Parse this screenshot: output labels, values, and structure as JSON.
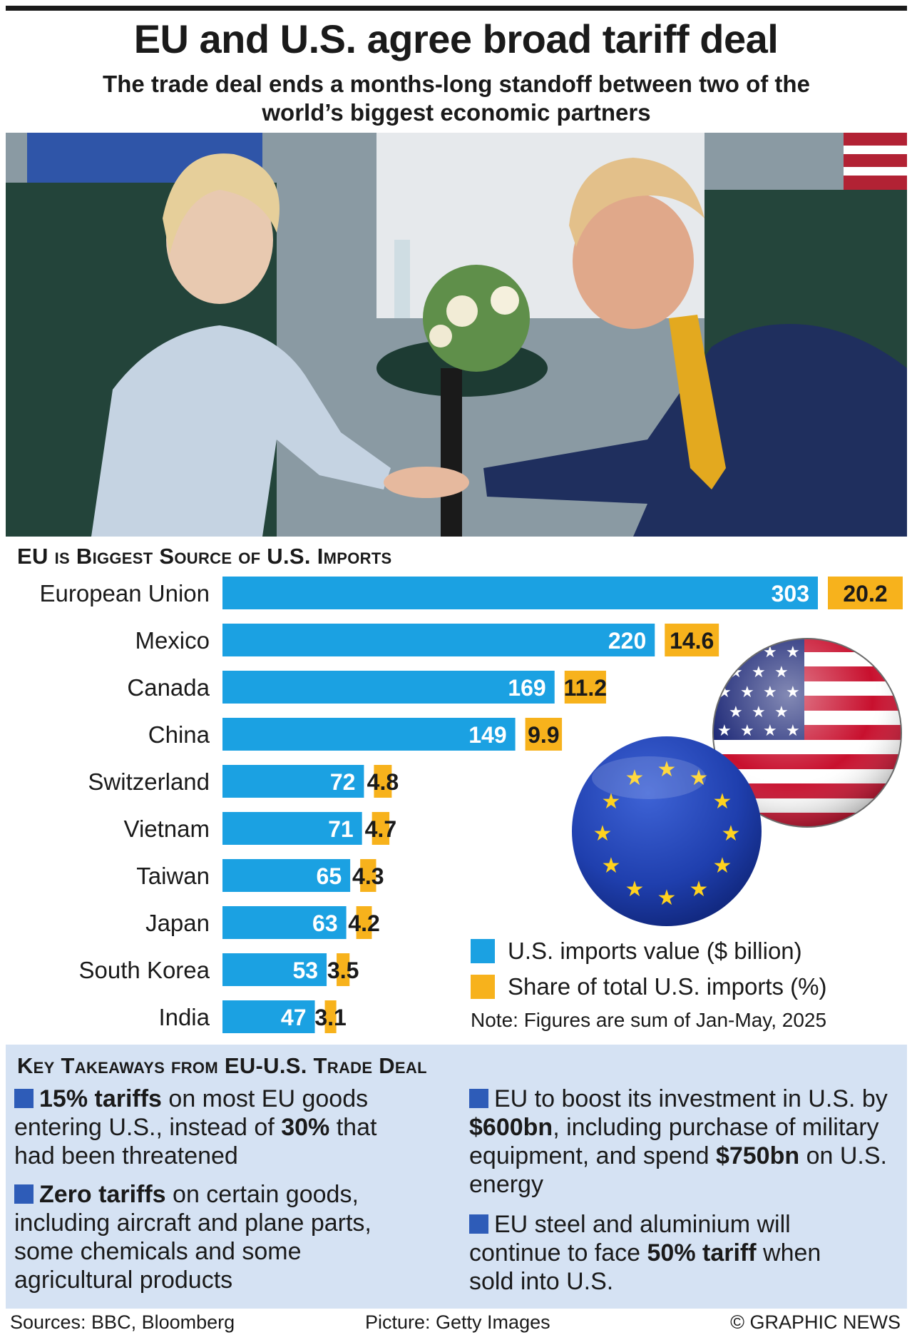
{
  "header": {
    "title": "EU and U.S. agree broad tariff deal",
    "subtitle": "The trade deal ends a months-long standoff between two of the world’s biggest economic partners"
  },
  "chart_data": {
    "type": "bar",
    "orientation": "horizontal",
    "title": "EU is Biggest Source of U.S. Imports",
    "categories": [
      "European Union",
      "Mexico",
      "Canada",
      "China",
      "Switzerland",
      "Vietnam",
      "Taiwan",
      "Japan",
      "South Korea",
      "India"
    ],
    "series": [
      {
        "name": "U.S. imports value ($ billion)",
        "values": [
          303,
          220,
          169,
          149,
          72,
          71,
          65,
          63,
          53,
          47
        ],
        "color": "#1ba1e2"
      },
      {
        "name": "Share of total U.S. imports (%)",
        "values": [
          20.2,
          14.6,
          11.2,
          9.9,
          4.8,
          4.7,
          4.3,
          4.2,
          3.5,
          3.1
        ],
        "color": "#f7b21c"
      }
    ],
    "value_labels": [
      "303",
      "220",
      "169",
      "149",
      "72",
      "71",
      "65",
      "63",
      "53",
      "47"
    ],
    "share_labels": [
      "20.2",
      "14.6",
      "11.2",
      "9.9",
      "4.8",
      "4.7",
      "4.3",
      "4.2",
      "3.5",
      "3.1"
    ],
    "legend_position": "bottom-right",
    "note": "Note: Figures are sum of Jan-May, 2025"
  },
  "takeaways": {
    "title": "Key Takeaways from EU-U.S. Trade Deal",
    "items": [
      {
        "b1": "15% tariffs",
        "t1": " on most EU goods entering U.S., instead of ",
        "b2": "30%",
        "t2": " that had been threatened"
      },
      {
        "b1": "Zero tariffs",
        "t1": " on certain goods, including aircraft and plane parts, some chemicals and some agricultural products"
      },
      {
        "t0": "EU to boost its investment in U.S. by ",
        "b1": "$600bn",
        "t1": ", including purchase of military equipment, and spend ",
        "b2": "$750bn",
        "t2": " on U.S. energy"
      },
      {
        "t0": "EU steel and aluminium will continue to face ",
        "b1": "50% tariff",
        "t1": " when sold into U.S."
      }
    ]
  },
  "footer": {
    "sources": "Sources: BBC, Bloomberg",
    "picture": "Picture: Getty Images",
    "copyright": "© GRAPHIC NEWS"
  },
  "colors": {
    "imports_bar": "#1ba1e2",
    "share_bar": "#f7b21c",
    "takeaway_bg": "#d5e2f3",
    "bullet": "#2e5cb8"
  },
  "icons": [
    "us-flag-badge-icon",
    "eu-flag-badge-icon",
    "bullet-square-icon"
  ]
}
